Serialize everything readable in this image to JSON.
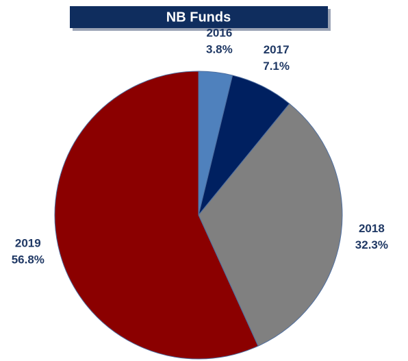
{
  "chart_data": {
    "type": "pie",
    "title": "NB Funds",
    "categories": [
      "2016",
      "2017",
      "2018",
      "2019"
    ],
    "values": [
      3.8,
      7.1,
      32.3,
      56.8
    ],
    "value_labels": [
      "3.8%",
      "7.1%",
      "32.3%",
      "56.8%"
    ],
    "colors": [
      "#4f81bd",
      "#002060",
      "#808080",
      "#8b0000"
    ]
  }
}
